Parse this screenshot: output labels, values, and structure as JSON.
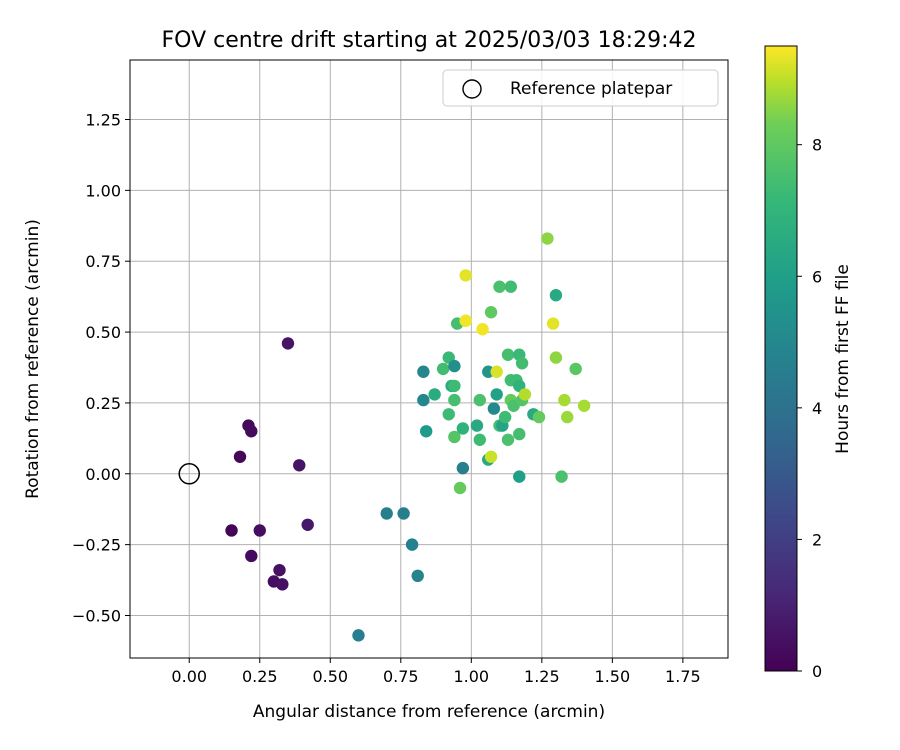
{
  "chart_data": {
    "type": "scatter",
    "title": "FOV centre drift starting at 2025/03/03 18:29:42",
    "xlabel": "Angular distance from reference (arcmin)",
    "ylabel": "Rotation from reference (arcmin)",
    "xlim": [
      -0.21,
      1.91
    ],
    "ylim": [
      -0.65,
      1.46
    ],
    "xticks": [
      "0.00",
      "0.25",
      "0.50",
      "0.75",
      "1.00",
      "1.25",
      "1.50",
      "1.75"
    ],
    "yticks": [
      "−0.50",
      "−0.25",
      "0.00",
      "0.25",
      "0.50",
      "0.75",
      "1.00",
      "1.25"
    ],
    "grid": true,
    "legend": {
      "placement": "top-right",
      "entries": [
        "Reference platepar"
      ]
    },
    "reference_point": {
      "x": 0.0,
      "y": 0.0,
      "marker": "hollow-circle"
    },
    "colorbar": {
      "label": "Hours from first FF file",
      "colormap": "viridis",
      "range": [
        0,
        9.5
      ],
      "ticks": [
        "0",
        "2",
        "4",
        "6",
        "8"
      ]
    },
    "points": [
      {
        "x": 0.15,
        "y": -0.2,
        "h": 0.1
      },
      {
        "x": 0.18,
        "y": 0.06,
        "h": 0.2
      },
      {
        "x": 0.21,
        "y": 0.17,
        "h": 0.2
      },
      {
        "x": 0.22,
        "y": 0.15,
        "h": 0.3
      },
      {
        "x": 0.22,
        "y": -0.29,
        "h": 0.3
      },
      {
        "x": 0.25,
        "y": -0.2,
        "h": 0.4
      },
      {
        "x": 0.3,
        "y": -0.38,
        "h": 0.4
      },
      {
        "x": 0.32,
        "y": -0.34,
        "h": 0.5
      },
      {
        "x": 0.33,
        "y": -0.39,
        "h": 0.5
      },
      {
        "x": 0.35,
        "y": 0.46,
        "h": 0.6
      },
      {
        "x": 0.39,
        "y": 0.03,
        "h": 0.6
      },
      {
        "x": 0.42,
        "y": -0.18,
        "h": 0.7
      },
      {
        "x": 0.6,
        "y": -0.57,
        "h": 4.5
      },
      {
        "x": 0.7,
        "y": -0.14,
        "h": 4.6
      },
      {
        "x": 0.76,
        "y": -0.14,
        "h": 4.6
      },
      {
        "x": 0.79,
        "y": -0.25,
        "h": 4.7
      },
      {
        "x": 0.81,
        "y": -0.36,
        "h": 4.8
      },
      {
        "x": 0.83,
        "y": 0.36,
        "h": 4.9
      },
      {
        "x": 0.83,
        "y": 0.26,
        "h": 4.9
      },
      {
        "x": 0.84,
        "y": 0.15,
        "h": 5.8
      },
      {
        "x": 0.87,
        "y": 0.28,
        "h": 6.6
      },
      {
        "x": 0.9,
        "y": 0.37,
        "h": 7.4
      },
      {
        "x": 0.92,
        "y": 0.41,
        "h": 7.2
      },
      {
        "x": 0.92,
        "y": 0.21,
        "h": 7.3
      },
      {
        "x": 0.93,
        "y": 0.31,
        "h": 6.6
      },
      {
        "x": 0.94,
        "y": 0.31,
        "h": 7.3
      },
      {
        "x": 0.94,
        "y": 0.26,
        "h": 7.5
      },
      {
        "x": 0.94,
        "y": 0.38,
        "h": 5.3
      },
      {
        "x": 0.94,
        "y": 0.13,
        "h": 7.8
      },
      {
        "x": 0.95,
        "y": 0.53,
        "h": 7.5
      },
      {
        "x": 0.96,
        "y": -0.05,
        "h": 8.1
      },
      {
        "x": 0.97,
        "y": 0.02,
        "h": 4.6
      },
      {
        "x": 0.97,
        "y": 0.16,
        "h": 6.9
      },
      {
        "x": 0.98,
        "y": 0.54,
        "h": 9.4
      },
      {
        "x": 0.98,
        "y": 0.7,
        "h": 9.3
      },
      {
        "x": 1.02,
        "y": 0.17,
        "h": 6.4
      },
      {
        "x": 1.03,
        "y": 0.12,
        "h": 7.3
      },
      {
        "x": 1.03,
        "y": 0.26,
        "h": 7.6
      },
      {
        "x": 1.04,
        "y": 0.51,
        "h": 9.4
      },
      {
        "x": 1.06,
        "y": 0.05,
        "h": 6.4
      },
      {
        "x": 1.06,
        "y": 0.36,
        "h": 5.5
      },
      {
        "x": 1.07,
        "y": 0.57,
        "h": 8.0
      },
      {
        "x": 1.07,
        "y": 0.06,
        "h": 9.1
      },
      {
        "x": 1.08,
        "y": 0.23,
        "h": 5.0
      },
      {
        "x": 1.09,
        "y": 0.28,
        "h": 6.1
      },
      {
        "x": 1.09,
        "y": 0.36,
        "h": 9.2
      },
      {
        "x": 1.1,
        "y": 0.66,
        "h": 7.6
      },
      {
        "x": 1.1,
        "y": 0.17,
        "h": 7.5
      },
      {
        "x": 1.11,
        "y": 0.17,
        "h": 6.2
      },
      {
        "x": 1.12,
        "y": 0.2,
        "h": 7.3
      },
      {
        "x": 1.13,
        "y": 0.12,
        "h": 7.6
      },
      {
        "x": 1.13,
        "y": 0.42,
        "h": 7.5
      },
      {
        "x": 1.14,
        "y": 0.66,
        "h": 7.4
      },
      {
        "x": 1.14,
        "y": 0.33,
        "h": 7.4
      },
      {
        "x": 1.14,
        "y": 0.26,
        "h": 8.1
      },
      {
        "x": 1.15,
        "y": 0.24,
        "h": 7.6
      },
      {
        "x": 1.16,
        "y": 0.33,
        "h": 7.3
      },
      {
        "x": 1.17,
        "y": 0.42,
        "h": 7.2
      },
      {
        "x": 1.17,
        "y": 0.31,
        "h": 6.9
      },
      {
        "x": 1.17,
        "y": 0.14,
        "h": 7.5
      },
      {
        "x": 1.18,
        "y": 0.39,
        "h": 7.4
      },
      {
        "x": 1.17,
        "y": -0.01,
        "h": 6.0
      },
      {
        "x": 1.18,
        "y": 0.26,
        "h": 7.8
      },
      {
        "x": 1.19,
        "y": 0.28,
        "h": 8.9
      },
      {
        "x": 1.22,
        "y": 0.21,
        "h": 6.5
      },
      {
        "x": 1.24,
        "y": 0.2,
        "h": 8.1
      },
      {
        "x": 1.27,
        "y": 0.83,
        "h": 8.6
      },
      {
        "x": 1.29,
        "y": 0.53,
        "h": 9.3
      },
      {
        "x": 1.3,
        "y": 0.41,
        "h": 8.6
      },
      {
        "x": 1.3,
        "y": 0.63,
        "h": 6.4
      },
      {
        "x": 1.32,
        "y": -0.01,
        "h": 7.6
      },
      {
        "x": 1.33,
        "y": 0.26,
        "h": 8.8
      },
      {
        "x": 1.34,
        "y": 0.2,
        "h": 8.7
      },
      {
        "x": 1.37,
        "y": 0.37,
        "h": 7.9
      },
      {
        "x": 1.4,
        "y": 0.24,
        "h": 8.8
      }
    ]
  }
}
